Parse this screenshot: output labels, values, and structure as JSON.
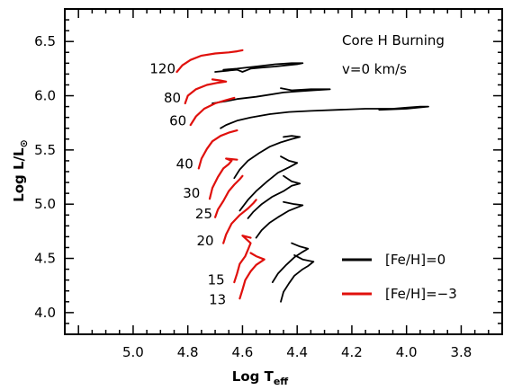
{
  "chart_data": {
    "type": "line",
    "xlabel_main": "Log T",
    "xlabel_sub": "eff",
    "ylabel_main": "Log L/L",
    "ylabel_sub": "⊙",
    "xlim": [
      5.25,
      3.65
    ],
    "ylim": [
      3.8,
      6.8
    ],
    "xinvert": true,
    "xticks": [
      5.0,
      4.8,
      4.6,
      4.4,
      4.2,
      4.0,
      3.8
    ],
    "xtick_labels": [
      "5.0",
      "4.8",
      "4.6",
      "4.4",
      "4.2",
      "4.0",
      "3.8"
    ],
    "yticks": [
      4.0,
      4.5,
      5.0,
      5.5,
      6.0,
      6.5
    ],
    "ytick_labels": [
      "4.0",
      "4.5",
      "5.0",
      "5.5",
      "6.0",
      "6.5"
    ],
    "grid": false,
    "annotations": [
      "Core H Burning",
      "v=0 km/s"
    ],
    "legend": {
      "placement": "bottom-right",
      "entries": [
        {
          "label": "[Fe/H]=0",
          "color": "#000000"
        },
        {
          "label": "[Fe/H]=−3",
          "color": "#e0100c"
        }
      ]
    },
    "mass_labels": [
      {
        "text": "120",
        "x": 4.845,
        "y": 6.25
      },
      {
        "text": "80",
        "x": 4.825,
        "y": 5.98
      },
      {
        "text": "60",
        "x": 4.805,
        "y": 5.77
      },
      {
        "text": "40",
        "x": 4.78,
        "y": 5.37
      },
      {
        "text": "30",
        "x": 4.755,
        "y": 5.1
      },
      {
        "text": "25",
        "x": 4.71,
        "y": 4.91
      },
      {
        "text": "20",
        "x": 4.705,
        "y": 4.66
      },
      {
        "text": "15",
        "x": 4.665,
        "y": 4.3
      },
      {
        "text": "13",
        "x": 4.66,
        "y": 4.12
      }
    ],
    "series": [
      {
        "name": "[Fe/H]=0",
        "color": "#000000",
        "tracks": [
          {
            "mass": 120,
            "points": [
              [
                4.7,
                6.22
              ],
              [
                4.66,
                6.23
              ],
              [
                4.62,
                6.24
              ],
              [
                4.6,
                6.22
              ],
              [
                4.57,
                6.25
              ],
              [
                4.53,
                6.26
              ],
              [
                4.48,
                6.27
              ],
              [
                4.44,
                6.28
              ],
              [
                4.4,
                6.29
              ],
              [
                4.38,
                6.3
              ],
              [
                4.42,
                6.3
              ],
              [
                4.48,
                6.29
              ],
              [
                4.55,
                6.27
              ],
              [
                4.62,
                6.25
              ],
              [
                4.67,
                6.24
              ]
            ]
          },
          {
            "mass": 80,
            "points": [
              [
                4.71,
                5.93
              ],
              [
                4.66,
                5.95
              ],
              [
                4.62,
                5.97
              ],
              [
                4.55,
                5.99
              ],
              [
                4.5,
                6.01
              ],
              [
                4.45,
                6.03
              ],
              [
                4.4,
                6.04
              ],
              [
                4.34,
                6.05
              ],
              [
                4.28,
                6.06
              ],
              [
                4.35,
                6.06
              ],
              [
                4.42,
                6.05
              ],
              [
                4.46,
                6.07
              ]
            ]
          },
          {
            "mass": 60,
            "points": [
              [
                4.68,
                5.7
              ],
              [
                4.66,
                5.73
              ],
              [
                4.62,
                5.77
              ],
              [
                4.57,
                5.8
              ],
              [
                4.5,
                5.83
              ],
              [
                4.43,
                5.85
              ],
              [
                4.35,
                5.86
              ],
              [
                4.25,
                5.87
              ],
              [
                4.15,
                5.88
              ],
              [
                4.05,
                5.88
              ],
              [
                4.0,
                5.89
              ],
              [
                3.95,
                5.9
              ],
              [
                3.92,
                5.9
              ],
              [
                4.0,
                5.88
              ],
              [
                4.1,
                5.87
              ]
            ]
          },
          {
            "mass": 40,
            "points": [
              [
                4.63,
                5.24
              ],
              [
                4.61,
                5.32
              ],
              [
                4.58,
                5.4
              ],
              [
                4.54,
                5.47
              ],
              [
                4.5,
                5.53
              ],
              [
                4.46,
                5.57
              ],
              [
                4.42,
                5.6
              ],
              [
                4.39,
                5.62
              ],
              [
                4.42,
                5.63
              ],
              [
                4.45,
                5.62
              ]
            ]
          },
          {
            "mass": 30,
            "points": [
              [
                4.61,
                4.94
              ],
              [
                4.58,
                5.04
              ],
              [
                4.55,
                5.12
              ],
              [
                4.51,
                5.21
              ],
              [
                4.47,
                5.29
              ],
              [
                4.43,
                5.34
              ],
              [
                4.4,
                5.38
              ],
              [
                4.43,
                5.4
              ],
              [
                4.46,
                5.44
              ]
            ]
          },
          {
            "mass": 25,
            "points": [
              [
                4.58,
                4.87
              ],
              [
                4.56,
                4.93
              ],
              [
                4.53,
                5.0
              ],
              [
                4.49,
                5.07
              ],
              [
                4.45,
                5.12
              ],
              [
                4.42,
                5.17
              ],
              [
                4.39,
                5.19
              ],
              [
                4.42,
                5.21
              ],
              [
                4.45,
                5.26
              ]
            ]
          },
          {
            "mass": 20,
            "points": [
              [
                4.55,
                4.69
              ],
              [
                4.53,
                4.76
              ],
              [
                4.5,
                4.83
              ],
              [
                4.47,
                4.88
              ],
              [
                4.43,
                4.94
              ],
              [
                4.4,
                4.97
              ],
              [
                4.38,
                4.99
              ],
              [
                4.41,
                5.0
              ],
              [
                4.45,
                5.02
              ]
            ]
          },
          {
            "mass": 15,
            "points": [
              [
                4.49,
                4.28
              ],
              [
                4.47,
                4.36
              ],
              [
                4.44,
                4.44
              ],
              [
                4.41,
                4.51
              ],
              [
                4.38,
                4.56
              ],
              [
                4.36,
                4.59
              ],
              [
                4.39,
                4.61
              ],
              [
                4.42,
                4.64
              ]
            ]
          },
          {
            "mass": 13,
            "points": [
              [
                4.46,
                4.1
              ],
              [
                4.45,
                4.19
              ],
              [
                4.43,
                4.27
              ],
              [
                4.41,
                4.34
              ],
              [
                4.38,
                4.4
              ],
              [
                4.36,
                4.43
              ],
              [
                4.34,
                4.47
              ],
              [
                4.38,
                4.49
              ],
              [
                4.41,
                4.53
              ]
            ]
          }
        ]
      },
      {
        "name": "[Fe/H]=−3",
        "color": "#e0100c",
        "tracks": [
          {
            "mass": 120,
            "points": [
              [
                4.84,
                6.22
              ],
              [
                4.82,
                6.28
              ],
              [
                4.79,
                6.33
              ],
              [
                4.75,
                6.37
              ],
              [
                4.7,
                6.39
              ],
              [
                4.65,
                6.4
              ],
              [
                4.62,
                6.41
              ],
              [
                4.6,
                6.42
              ]
            ]
          },
          {
            "mass": 80,
            "points": [
              [
                4.81,
                5.93
              ],
              [
                4.8,
                6.0
              ],
              [
                4.77,
                6.06
              ],
              [
                4.73,
                6.1
              ],
              [
                4.69,
                6.12
              ],
              [
                4.66,
                6.13
              ],
              [
                4.68,
                6.14
              ],
              [
                4.71,
                6.15
              ]
            ]
          },
          {
            "mass": 60,
            "points": [
              [
                4.79,
                5.73
              ],
              [
                4.77,
                5.81
              ],
              [
                4.74,
                5.88
              ],
              [
                4.7,
                5.93
              ],
              [
                4.66,
                5.96
              ],
              [
                4.63,
                5.98
              ]
            ]
          },
          {
            "mass": 40,
            "points": [
              [
                4.76,
                5.33
              ],
              [
                4.75,
                5.42
              ],
              [
                4.73,
                5.51
              ],
              [
                4.71,
                5.58
              ],
              [
                4.68,
                5.63
              ],
              [
                4.65,
                5.66
              ],
              [
                4.62,
                5.68
              ]
            ]
          },
          {
            "mass": 30,
            "points": [
              [
                4.72,
                5.05
              ],
              [
                4.71,
                5.15
              ],
              [
                4.69,
                5.25
              ],
              [
                4.67,
                5.33
              ],
              [
                4.65,
                5.37
              ],
              [
                4.64,
                5.4
              ],
              [
                4.66,
                5.42
              ],
              [
                4.62,
                5.41
              ]
            ]
          },
          {
            "mass": 25,
            "points": [
              [
                4.7,
                4.88
              ],
              [
                4.69,
                4.95
              ],
              [
                4.67,
                5.03
              ],
              [
                4.65,
                5.12
              ],
              [
                4.63,
                5.18
              ],
              [
                4.61,
                5.23
              ],
              [
                4.6,
                5.26
              ]
            ]
          },
          {
            "mass": 20,
            "points": [
              [
                4.67,
                4.64
              ],
              [
                4.66,
                4.72
              ],
              [
                4.64,
                4.82
              ],
              [
                4.61,
                4.9
              ],
              [
                4.58,
                4.96
              ],
              [
                4.56,
                5.01
              ],
              [
                4.55,
                5.04
              ]
            ]
          },
          {
            "mass": 15,
            "points": [
              [
                4.63,
                4.28
              ],
              [
                4.62,
                4.36
              ],
              [
                4.61,
                4.45
              ],
              [
                4.59,
                4.52
              ],
              [
                4.58,
                4.58
              ],
              [
                4.57,
                4.64
              ],
              [
                4.6,
                4.71
              ],
              [
                4.57,
                4.69
              ]
            ]
          },
          {
            "mass": 13,
            "points": [
              [
                4.61,
                4.13
              ],
              [
                4.6,
                4.21
              ],
              [
                4.59,
                4.3
              ],
              [
                4.57,
                4.38
              ],
              [
                4.55,
                4.44
              ],
              [
                4.52,
                4.49
              ],
              [
                4.55,
                4.52
              ],
              [
                4.57,
                4.55
              ]
            ]
          }
        ]
      }
    ]
  }
}
